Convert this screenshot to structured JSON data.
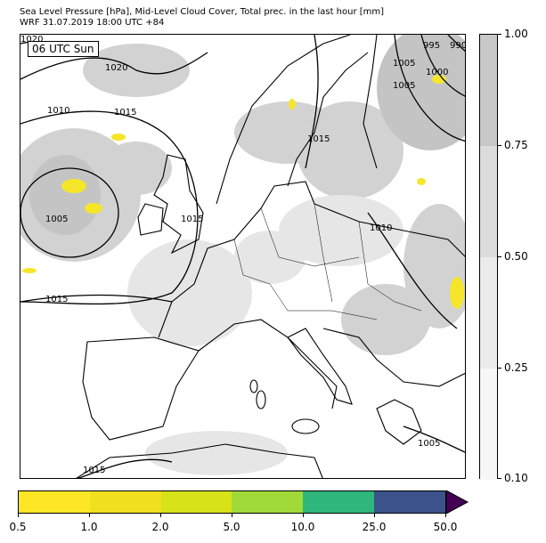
{
  "header": {
    "title_line1": "Sea Level Pressure [hPa], Mid-Level Cloud Cover, Total prec. in the last hour [mm]",
    "title_line2": "WRF 31.07.2019 18:00 UTC +84"
  },
  "map": {
    "time_label": "06 UTC Sun",
    "isobar_labels": [
      "1020",
      "1020",
      "1010",
      "1015",
      "1005",
      "1015",
      "1015",
      "1015",
      "1010",
      "1005",
      "995",
      "990",
      "1005",
      "1000",
      "1015",
      "1005"
    ],
    "colors": {
      "coast": "#000000",
      "cloud_light": "#e6e6e6",
      "cloud_mid": "#d2d2d2",
      "cloud_dark": "#c4c4c4",
      "precip": "#f5e62a"
    }
  },
  "cloud_colorbar": {
    "ticks": [
      "1.00",
      "0.75",
      "0.50",
      "0.25",
      "0.10"
    ],
    "colors": [
      "#c8c8c8",
      "#dcdcdc",
      "#ebebeb",
      "#f7f7f7"
    ]
  },
  "precip_colorbar": {
    "ticks": [
      "0.5",
      "1.0",
      "2.0",
      "5.0",
      "10.0",
      "25.0",
      "50.0"
    ],
    "colors": [
      "#fde725",
      "#f0e01f",
      "#d7e219",
      "#a0da39",
      "#2eb67c",
      "#3b528b",
      "#440154"
    ]
  }
}
